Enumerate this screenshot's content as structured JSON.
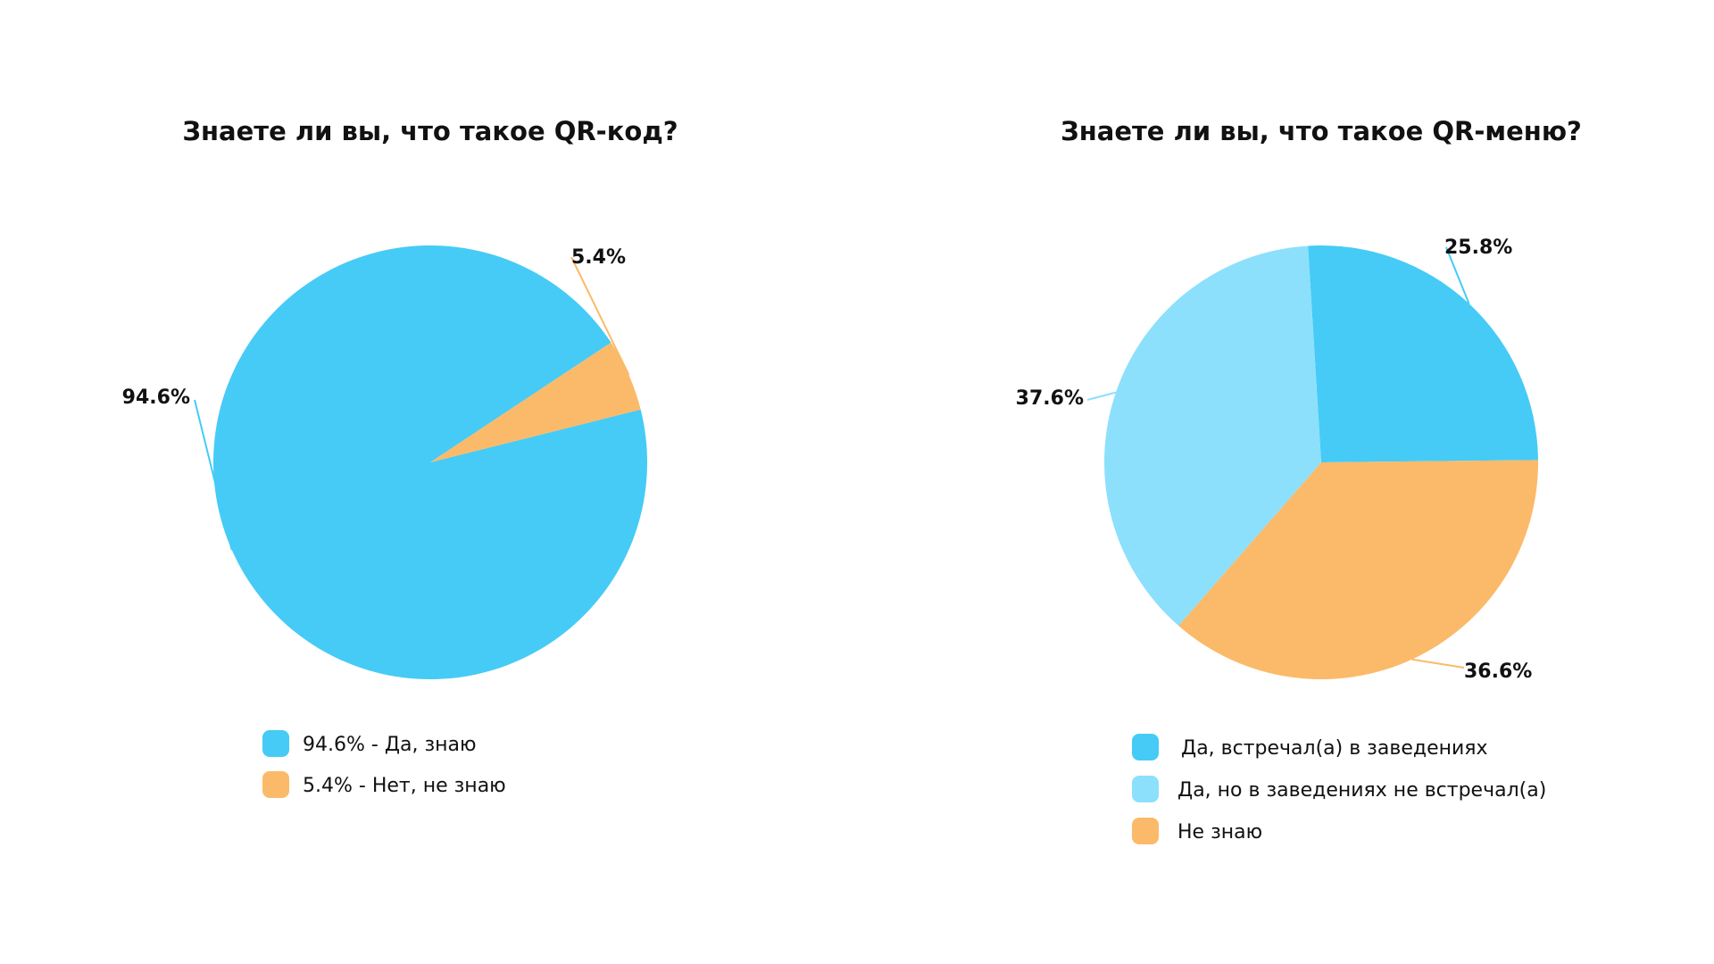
{
  "chart_data": [
    {
      "type": "pie",
      "title": "Знаете ли вы, что такое QR-код?",
      "slices": [
        {
          "value": 94.6,
          "label": "94.6%",
          "legend": "94.6% - Да, знаю",
          "color": "#45CBF6"
        },
        {
          "value": 5.4,
          "label": "5.4%",
          "legend": "5.4% - Нет, не знаю",
          "color": "#FBBA69"
        }
      ]
    },
    {
      "type": "pie",
      "title": "Знаете ли вы, что такое QR-меню?",
      "slices": [
        {
          "value": 25.8,
          "label": "25.8%",
          "legend": "Да, встречал(а) в заведениях",
          "color": "#45CBF6"
        },
        {
          "value": 36.6,
          "label": "36.6%",
          "legend": "Не знаю",
          "color": "#FBBA69"
        },
        {
          "value": 37.6,
          "label": "37.6%",
          "legend": "Да, но в заведениях не встречал(а)",
          "color": "#8CE0FC"
        }
      ],
      "legend_order": [
        0,
        2,
        1
      ]
    }
  ]
}
